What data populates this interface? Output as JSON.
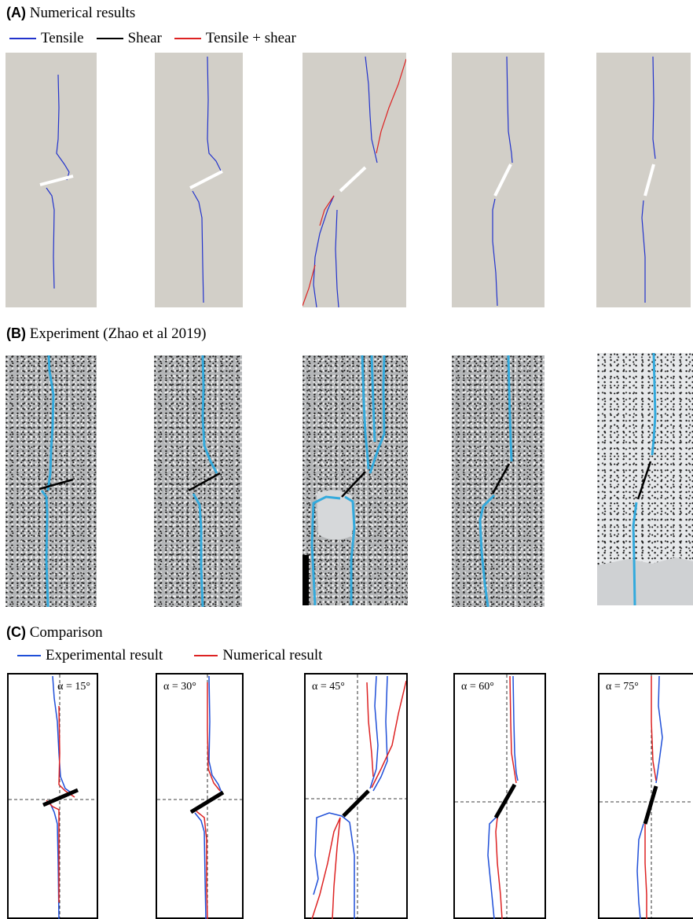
{
  "section_a": {
    "letter": "(A)",
    "title": "Numerical results"
  },
  "legend_a": [
    {
      "label": "Tensile",
      "color": "#2233cc"
    },
    {
      "label": "Shear",
      "color": "#000000"
    },
    {
      "label": "Tensile + shear",
      "color": "#dd2222"
    }
  ],
  "section_b": {
    "letter": "(B)",
    "title": "Experiment (Zhao et al 2019)"
  },
  "section_c": {
    "letter": "(C)",
    "title": "Comparison"
  },
  "legend_c": [
    {
      "label": "Experimental result",
      "color": "#1f4fd8"
    },
    {
      "label": "Numerical result",
      "color": "#dd2222"
    }
  ],
  "angles": [
    "α = 15°",
    "α = 30°",
    "α = 45°",
    "α = 60°",
    "α = 75°"
  ],
  "colors": {
    "panel_gray": "#d2cfc8",
    "experiment_crack": "#33aadd",
    "flaw_white": "#ffffff",
    "flaw_black": "#000000"
  }
}
